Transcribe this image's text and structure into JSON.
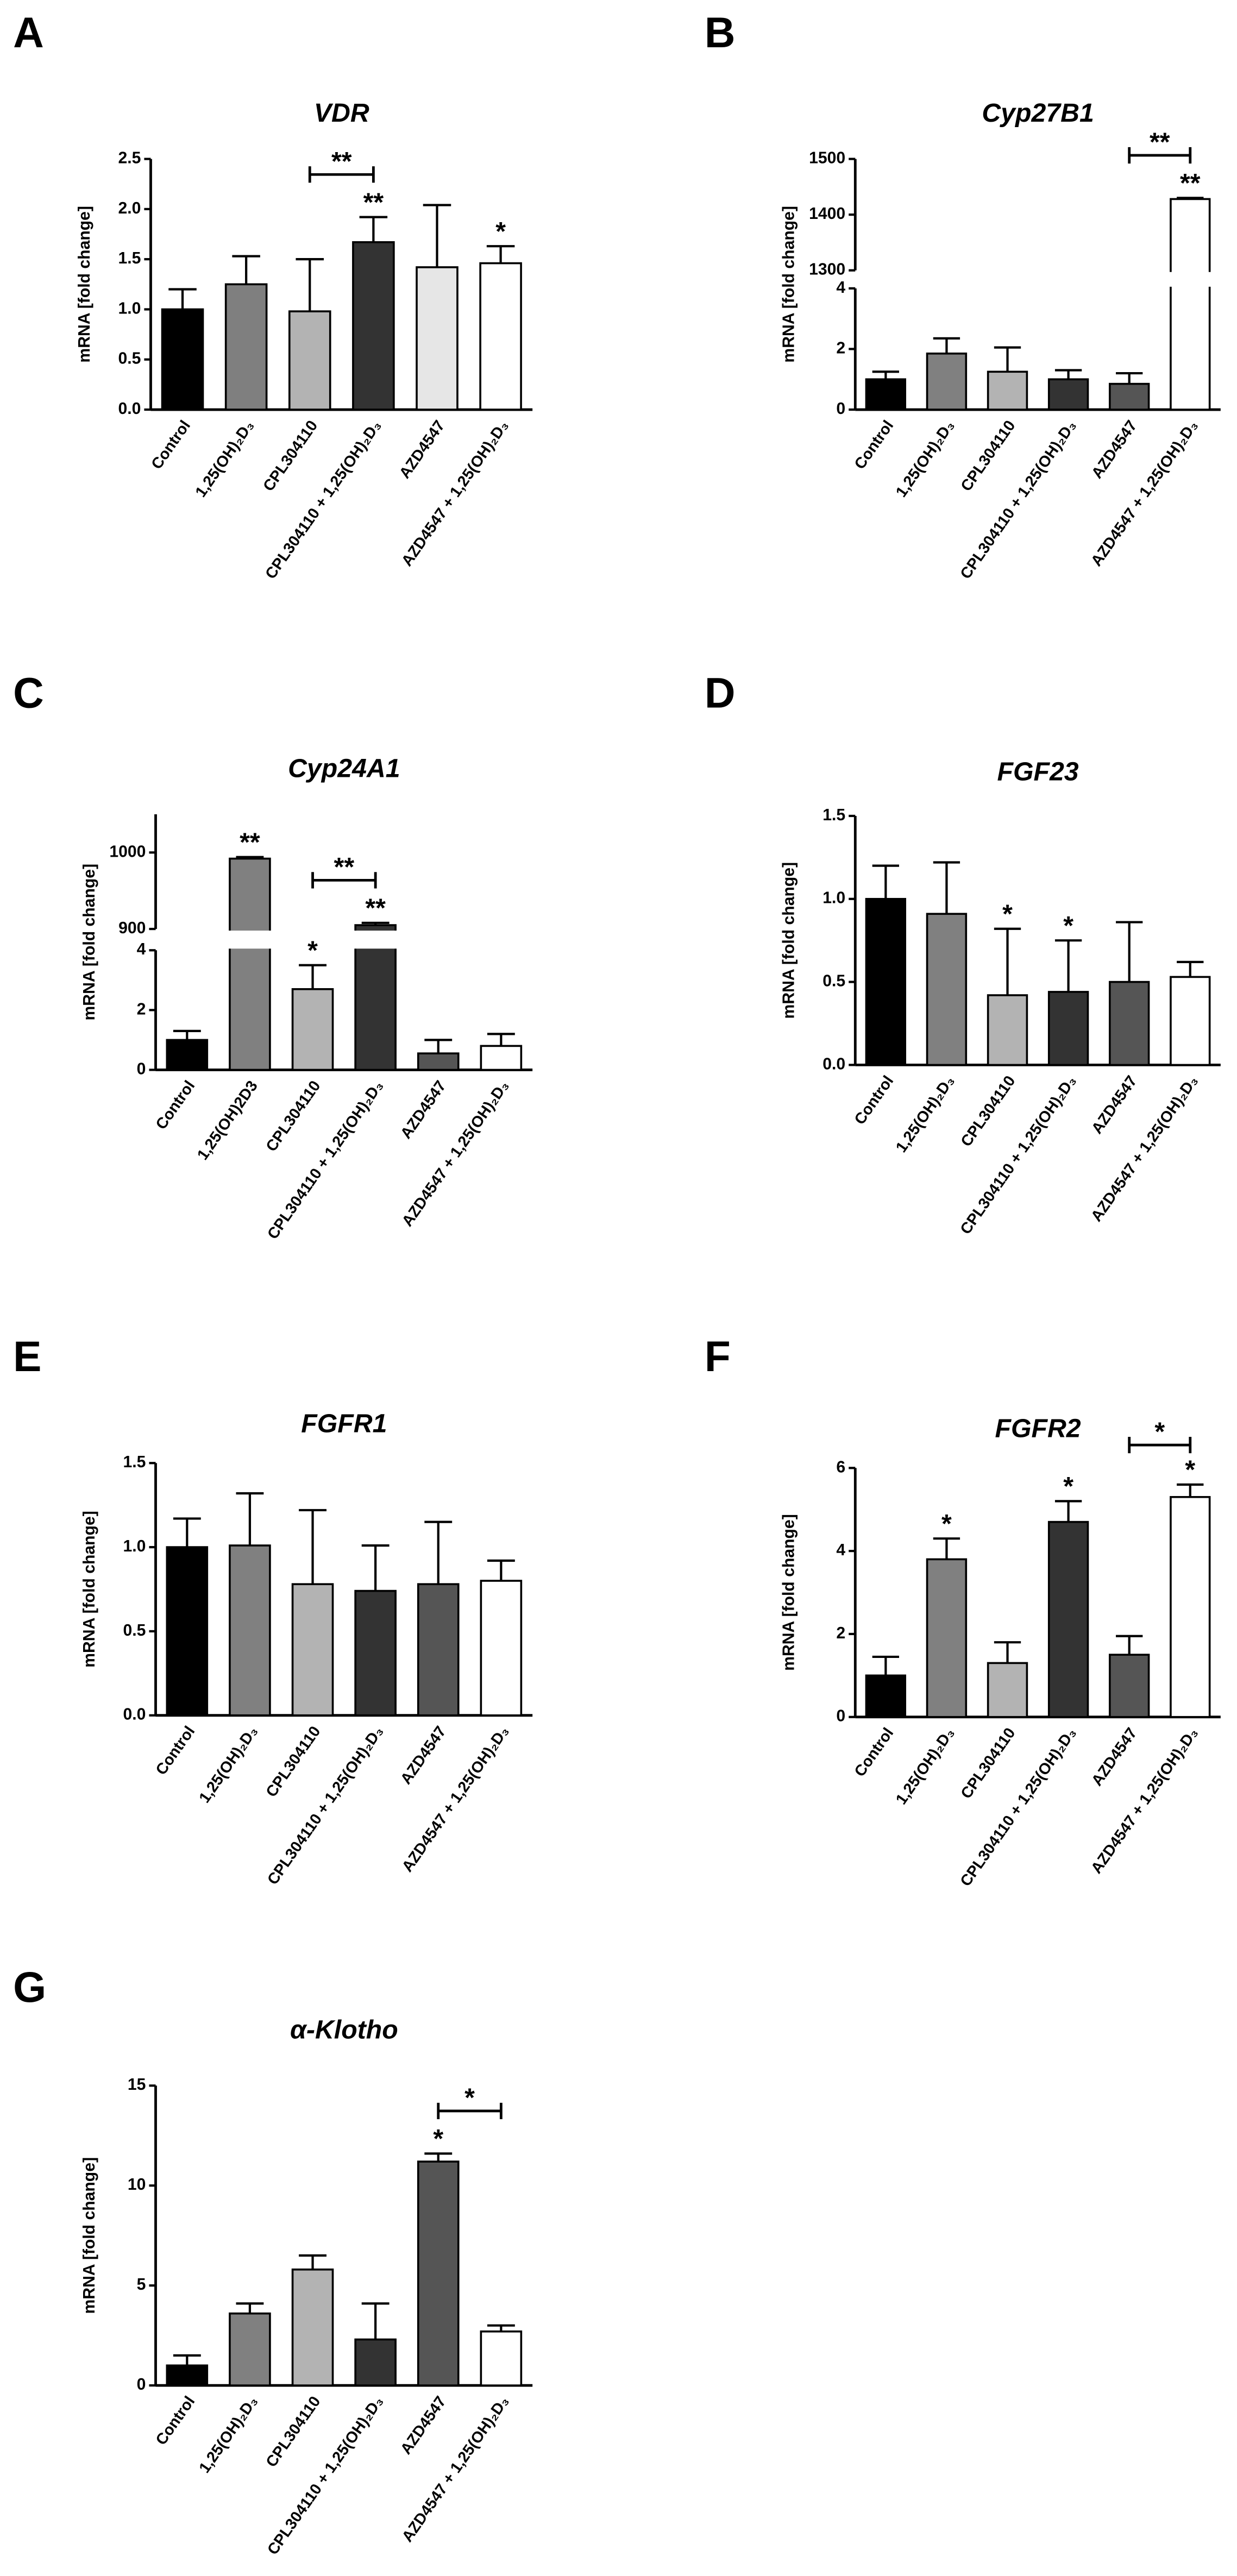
{
  "chart_data": [
    {
      "type": "bar",
      "panel": "A",
      "title": "VDR",
      "y_label": "mRNA [fold change]",
      "categories": [
        "Control",
        "1,25(OH)₂D₃",
        "CPL304110",
        "CPL304110 + 1,25(OH)₂D₃",
        "AZD4547",
        "AZD4547 + 1,25(OH)₂D₃"
      ],
      "values": [
        1.0,
        1.25,
        0.98,
        1.67,
        1.42,
        1.46
      ],
      "errors": [
        0.2,
        0.28,
        0.52,
        0.25,
        0.62,
        0.17
      ],
      "colors": [
        "#000000",
        "#7f7f7f",
        "#b3b3b3",
        "#333333",
        "#e6e6e6",
        "#ffffff"
      ],
      "ylim": [
        0,
        2.5
      ],
      "yticks": [
        {
          "value": 0,
          "label": "0.0"
        },
        0.5,
        {
          "value": 1,
          "label": "1.0"
        },
        1.5,
        {
          "value": 2,
          "label": "2.0"
        },
        2.5
      ],
      "annotations": [
        {
          "text": "**",
          "bar": 3
        },
        {
          "text": "*",
          "bar": 5
        }
      ],
      "brackets": [
        {
          "text": "**",
          "from": 2,
          "to": 3
        }
      ]
    },
    {
      "type": "bar",
      "panel": "B",
      "title": "Cyp27B1",
      "y_label": "mRNA [fold change]",
      "categories": [
        "Control",
        "1,25(OH)₂D₃",
        "CPL304110",
        "CPL304110 + 1,25(OH)₂D₃",
        "AZD4547",
        "AZD4547 + 1,25(OH)₂D₃"
      ],
      "values": [
        1.0,
        1.85,
        1.25,
        1.0,
        0.85,
        1428
      ],
      "errors": [
        0.25,
        0.5,
        0.8,
        0.3,
        0.35,
        2
      ],
      "colors": [
        "#000000",
        "#808080",
        "#b3b3b3",
        "#333333",
        "#555555",
        "#ffffff"
      ],
      "ylim": [
        0,
        1500
      ],
      "ybreak": [
        4,
        1300
      ],
      "yticks": [
        0,
        2,
        4,
        1300,
        1400,
        1500
      ],
      "annotations": [
        {
          "text": "**",
          "bar": 5
        }
      ],
      "brackets": [
        {
          "text": "**",
          "from": 4,
          "to": 5
        }
      ]
    },
    {
      "type": "bar",
      "panel": "C",
      "title": "Cyp24A1",
      "y_label": "mRNA [fold change]",
      "categories": [
        "Control",
        "1,25(OH)2D3",
        "CPL304110",
        "CPL304110 + 1,25(OH)₂D₃",
        "AZD4547",
        "AZD4547 + 1,25(OH)₂D₃"
      ],
      "values": [
        1.0,
        992,
        2.7,
        905,
        0.55,
        0.8
      ],
      "errors": [
        0.3,
        2,
        0.8,
        3,
        0.45,
        0.4
      ],
      "colors": [
        "#000000",
        "#808080",
        "#b3b3b3",
        "#333333",
        "#555555",
        "#ffffff"
      ],
      "ylim": [
        0,
        1050
      ],
      "ybreak": [
        4,
        900
      ],
      "yticks": [
        0,
        2,
        4,
        900,
        1000
      ],
      "annotations": [
        {
          "text": "**",
          "bar": 1
        },
        {
          "text": "*",
          "bar": 2
        },
        {
          "text": "**",
          "bar": 3
        }
      ],
      "brackets": [
        {
          "text": "**",
          "from": 2,
          "to": 3
        }
      ]
    },
    {
      "type": "bar",
      "panel": "D",
      "title": "FGF23",
      "y_label": "mRNA [fold change]",
      "categories": [
        "Control",
        "1,25(OH)₂D₃",
        "CPL304110",
        "CPL304110 + 1,25(OH)₂D₃",
        "AZD4547",
        "AZD4547 + 1,25(OH)₂D₃"
      ],
      "values": [
        1.0,
        0.91,
        0.42,
        0.44,
        0.5,
        0.53
      ],
      "errors": [
        0.2,
        0.31,
        0.4,
        0.31,
        0.36,
        0.09
      ],
      "colors": [
        "#000000",
        "#808080",
        "#b3b3b3",
        "#333333",
        "#555555",
        "#ffffff"
      ],
      "ylim": [
        0,
        1.5
      ],
      "yticks": [
        {
          "value": 0,
          "label": "0.0"
        },
        0.5,
        {
          "value": 1,
          "label": "1.0"
        },
        1.5
      ],
      "annotations": [
        {
          "text": "*",
          "bar": 2
        },
        {
          "text": "*",
          "bar": 3
        }
      ],
      "brackets": []
    },
    {
      "type": "bar",
      "panel": "E",
      "title": "FGFR1",
      "y_label": "mRNA [fold change]",
      "categories": [
        "Control",
        "1,25(OH)₂D₃",
        "CPL304110",
        "CPL304110 + 1,25(OH)₂D₃",
        "AZD4547",
        "AZD4547 + 1,25(OH)₂D₃"
      ],
      "values": [
        1.0,
        1.01,
        0.78,
        0.74,
        0.78,
        0.8
      ],
      "errors": [
        0.17,
        0.31,
        0.44,
        0.27,
        0.37,
        0.12
      ],
      "colors": [
        "#000000",
        "#808080",
        "#b3b3b3",
        "#333333",
        "#555555",
        "#ffffff"
      ],
      "ylim": [
        0,
        1.5
      ],
      "yticks": [
        {
          "value": 0,
          "label": "0.0"
        },
        0.5,
        {
          "value": 1,
          "label": "1.0"
        },
        1.5
      ],
      "annotations": [],
      "brackets": []
    },
    {
      "type": "bar",
      "panel": "F",
      "title": "FGFR2",
      "y_label": "mRNA [fold change]",
      "categories": [
        "Control",
        "1,25(OH)₂D₃",
        "CPL304110",
        "CPL304110 + 1,25(OH)₂D₃",
        "AZD4547",
        "AZD4547 + 1,25(OH)₂D₃"
      ],
      "values": [
        1.0,
        3.8,
        1.3,
        4.7,
        1.5,
        5.3
      ],
      "errors": [
        0.45,
        0.5,
        0.5,
        0.5,
        0.45,
        0.3
      ],
      "colors": [
        "#000000",
        "#808080",
        "#b3b3b3",
        "#333333",
        "#555555",
        "#ffffff"
      ],
      "ylim": [
        0,
        6
      ],
      "yticks": [
        0,
        2,
        4,
        6
      ],
      "annotations": [
        {
          "text": "*",
          "bar": 1
        },
        {
          "text": "*",
          "bar": 3
        },
        {
          "text": "*",
          "bar": 5
        }
      ],
      "brackets": [
        {
          "text": "*",
          "from": 4,
          "to": 5
        }
      ]
    },
    {
      "type": "bar",
      "panel": "G",
      "title": "α-Klotho",
      "y_label": "mRNA [fold change]",
      "categories": [
        "Control",
        "1,25(OH)₂D₃",
        "CPL304110",
        "CPL304110 + 1,25(OH)₂D₃",
        "AZD4547",
        "AZD4547 + 1,25(OH)₂D₃"
      ],
      "values": [
        1.0,
        3.6,
        5.8,
        2.3,
        11.2,
        2.7
      ],
      "errors": [
        0.5,
        0.5,
        0.7,
        1.8,
        0.4,
        0.3
      ],
      "colors": [
        "#000000",
        "#808080",
        "#b3b3b3",
        "#333333",
        "#555555",
        "#ffffff"
      ],
      "ylim": [
        0,
        15
      ],
      "yticks": [
        0,
        5,
        10,
        15
      ],
      "annotations": [
        {
          "text": "*",
          "bar": 4
        }
      ],
      "brackets": [
        {
          "text": "*",
          "from": 4,
          "to": 5
        }
      ]
    }
  ]
}
